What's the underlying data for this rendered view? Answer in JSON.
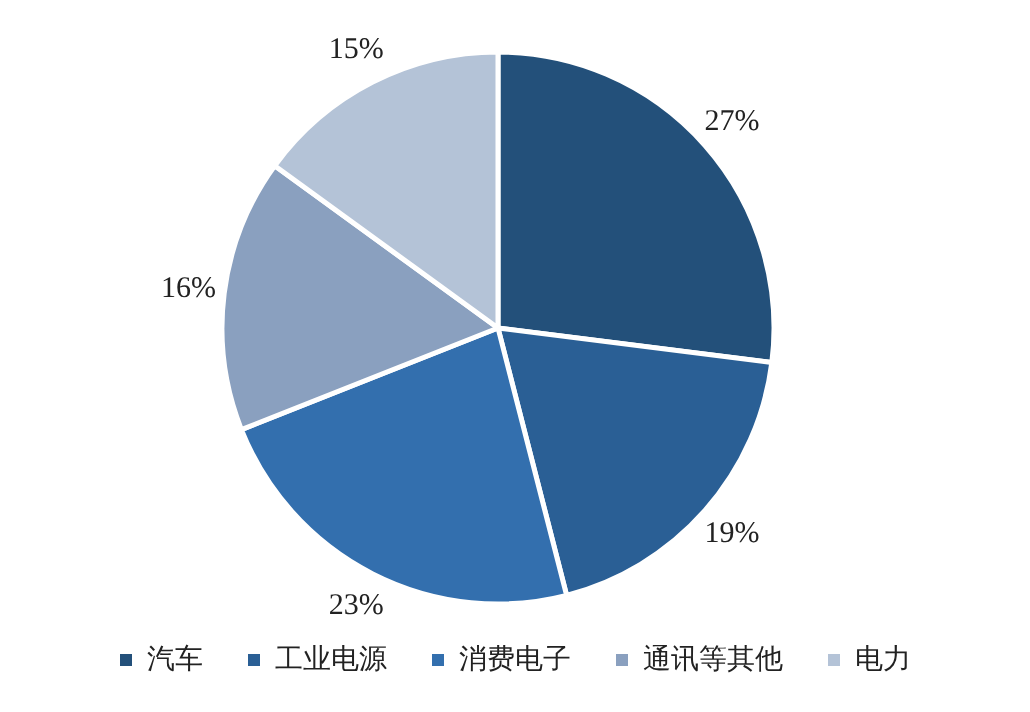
{
  "chart_data": {
    "type": "pie",
    "categories": [
      "汽车",
      "工业电源",
      "消费电子",
      "通讯等其他",
      "电力"
    ],
    "values": [
      27,
      19,
      23,
      16,
      15
    ],
    "colors": [
      "#23507a",
      "#2a5f95",
      "#336fae",
      "#8aa0bf",
      "#b4c3d7"
    ],
    "value_labels": [
      "27%",
      "19%",
      "23%",
      "16%",
      "15%"
    ],
    "legend": "bottom"
  }
}
